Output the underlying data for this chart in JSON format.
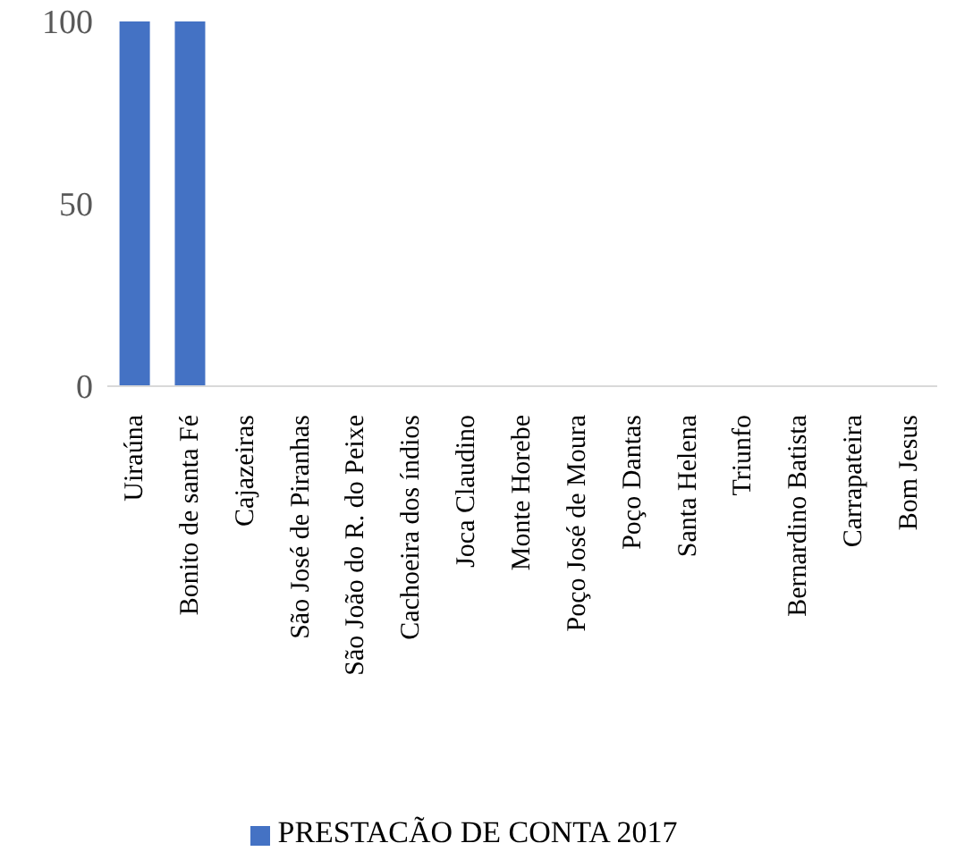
{
  "chart_data": {
    "type": "bar",
    "categories": [
      "Uiraúna",
      "Bonito de santa Fé",
      "Cajazeiras",
      "São José de Piranhas",
      "São João do R. do Peixe",
      "Cachoeira dos índios",
      "Joca Claudino",
      "Monte Horebe",
      "Poço José de Moura",
      "Poço Dantas",
      "Santa Helena",
      "Triunfo",
      "Bernardino Batista",
      "Carrapateira",
      "Bom Jesus"
    ],
    "series": [
      {
        "name": "PRESTACÃO DE CONTA 2017",
        "color": "#4472c4",
        "values": [
          100,
          100,
          0,
          0,
          0,
          0,
          0,
          0,
          0,
          0,
          0,
          0,
          0,
          0,
          0
        ]
      }
    ],
    "ylim": [
      0,
      100
    ],
    "yticks": [
      0,
      50,
      100
    ],
    "grid": false,
    "legend": "bottom"
  }
}
